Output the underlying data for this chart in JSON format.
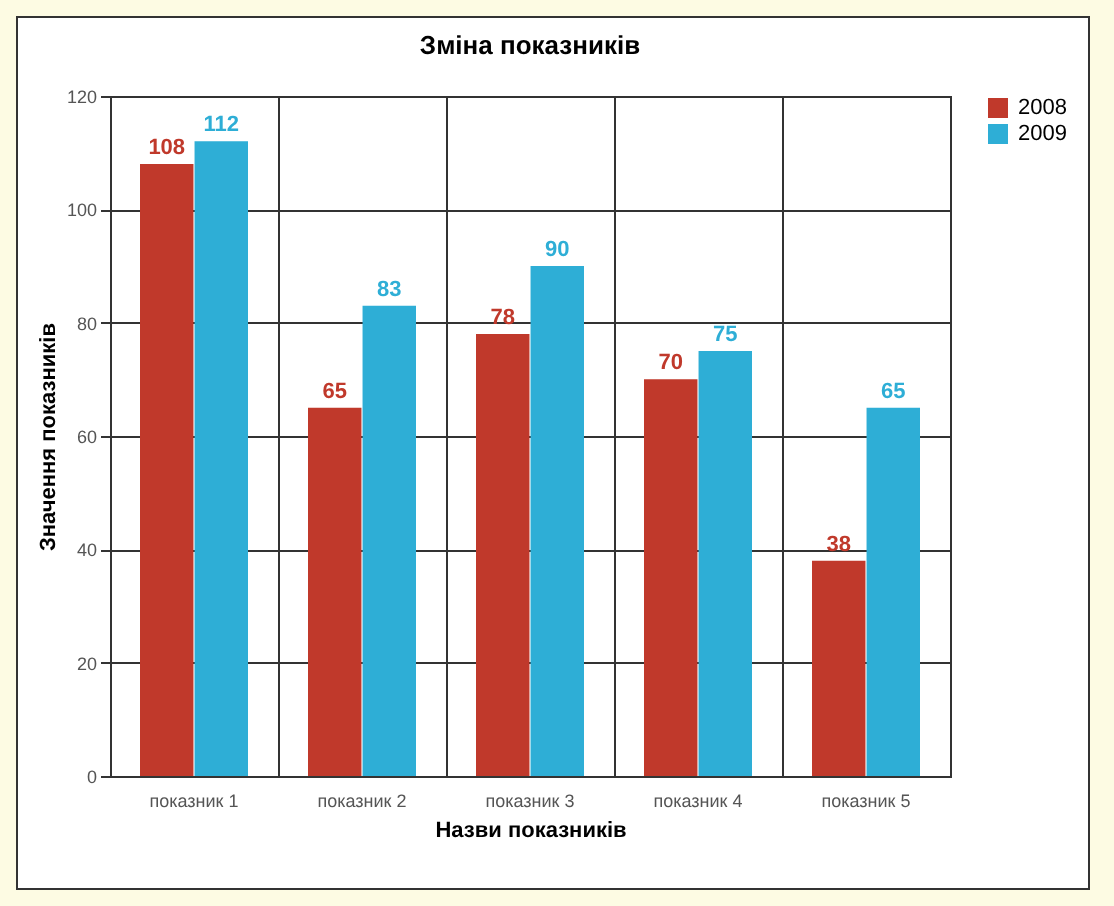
{
  "chart_data": {
    "type": "bar",
    "title": "Зміна показників",
    "xlabel": "Назви показників",
    "ylabel": "Значення показників",
    "categories": [
      "показник 1",
      "показник 2",
      "показник 3",
      "показник 4",
      "показник 5"
    ],
    "series": [
      {
        "name": "2008",
        "color": "#c0392b",
        "values": [
          108,
          65,
          78,
          70,
          38
        ]
      },
      {
        "name": "2009",
        "color": "#2eaed6",
        "values": [
          112,
          83,
          90,
          75,
          65
        ]
      }
    ],
    "ylim": [
      0,
      120
    ],
    "yticks": [
      0,
      20,
      40,
      60,
      80,
      100,
      120
    ],
    "grid": true,
    "legend": "right",
    "data_labels": true
  }
}
